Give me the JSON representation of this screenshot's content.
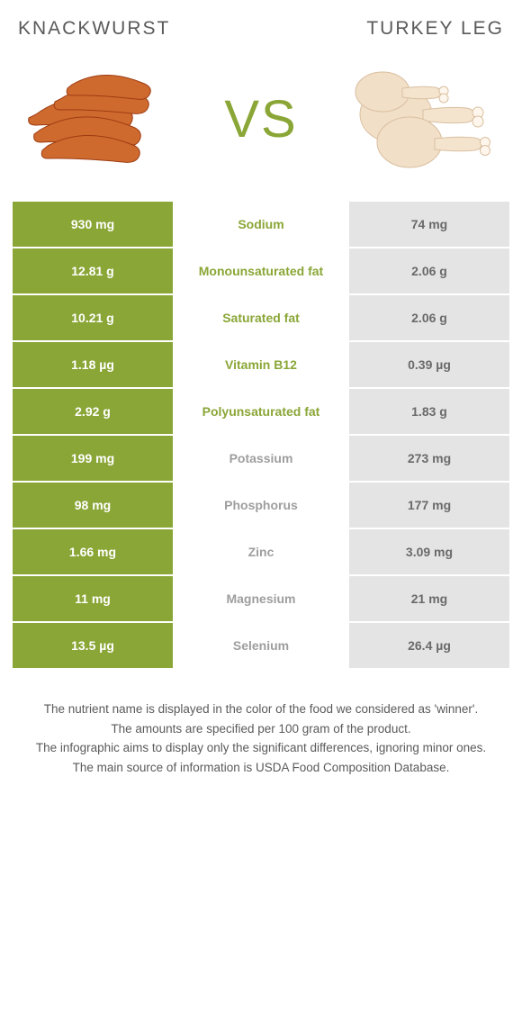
{
  "titles": {
    "left": "Knackwurst",
    "right": "Turkey leg"
  },
  "vs_label": "VS",
  "colors": {
    "left_bg": "#8aa636",
    "right_bg": "#e4e4e4",
    "left_text": "#8aa636",
    "right_text": "#9e9e9e",
    "vs_color": "#8aa636"
  },
  "rows": [
    {
      "label": "Sodium",
      "left": "930 mg",
      "right": "74 mg",
      "winner": "left"
    },
    {
      "label": "Monounsaturated fat",
      "left": "12.81 g",
      "right": "2.06 g",
      "winner": "left"
    },
    {
      "label": "Saturated fat",
      "left": "10.21 g",
      "right": "2.06 g",
      "winner": "left"
    },
    {
      "label": "Vitamin B12",
      "left": "1.18 µg",
      "right": "0.39 µg",
      "winner": "left"
    },
    {
      "label": "Polyunsaturated fat",
      "left": "2.92 g",
      "right": "1.83 g",
      "winner": "left"
    },
    {
      "label": "Potassium",
      "left": "199 mg",
      "right": "273 mg",
      "winner": "right"
    },
    {
      "label": "Phosphorus",
      "left": "98 mg",
      "right": "177 mg",
      "winner": "right"
    },
    {
      "label": "Zinc",
      "left": "1.66 mg",
      "right": "3.09 mg",
      "winner": "right"
    },
    {
      "label": "Magnesium",
      "left": "11 mg",
      "right": "21 mg",
      "winner": "right"
    },
    {
      "label": "Selenium",
      "left": "13.5 µg",
      "right": "26.4 µg",
      "winner": "right"
    }
  ],
  "footer": [
    "The nutrient name is displayed in the color of the food we considered as 'winner'.",
    "The amounts are specified per 100 gram of the product.",
    "The infographic aims to display only the significant differences, ignoring minor ones.",
    "The main source of information is USDA Food Composition Database."
  ]
}
